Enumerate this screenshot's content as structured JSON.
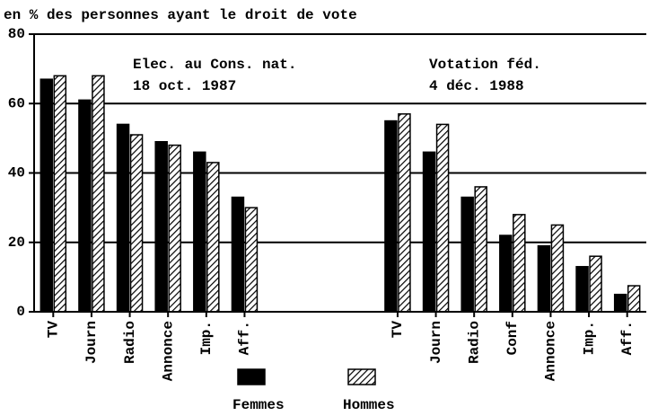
{
  "chart_data": {
    "type": "bar",
    "title": "en % des personnes ayant le droit de vote",
    "annotations": [
      "Elec. au Cons. nat.",
      "18 oct. 1987",
      "Votation féd.",
      "4 déc. 1988"
    ],
    "categories": [
      "TV",
      "Journ",
      "Radio",
      "Annonce",
      "Imp.",
      "Aff.",
      null,
      null,
      null,
      "TV",
      "Journ",
      "Radio",
      "Conf",
      "Annonce",
      "Imp.",
      "Aff."
    ],
    "series": [
      {
        "name": "Femmes",
        "color": "#000000",
        "pattern": "solid",
        "values": [
          67,
          61,
          54,
          49,
          46,
          33,
          null,
          null,
          null,
          55,
          46,
          33,
          22,
          19,
          13,
          5
        ]
      },
      {
        "name": "Hommes",
        "color": "#000000",
        "pattern": "hatch",
        "values": [
          68,
          68,
          51,
          48,
          43,
          30,
          null,
          null,
          null,
          57,
          54,
          36,
          28,
          25,
          16,
          7.5
        ]
      }
    ],
    "ylim": [
      0,
      80
    ],
    "yticks": [
      0,
      20,
      40,
      60,
      80
    ],
    "grid": true,
    "legend": "bottom"
  }
}
